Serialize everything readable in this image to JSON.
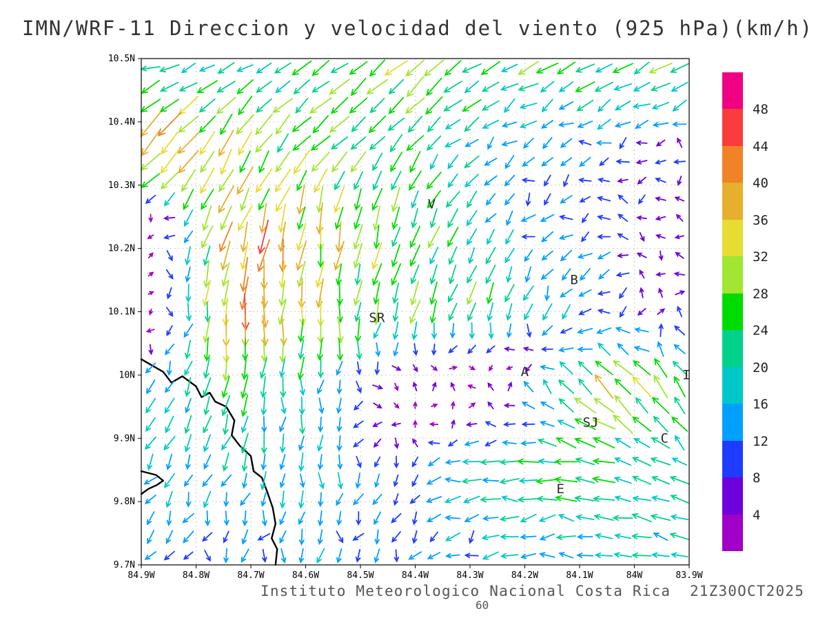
{
  "page": {
    "background": "#ffffff"
  },
  "chart_data": {
    "type": "vector_field_map",
    "title": "IMN/WRF-11 Direccion y velocidad del viento (925 hPa)(km/h)",
    "caption": "Instituto Meteorologico Nacional Costa Rica  21Z30OCT2025",
    "footnote": "60",
    "x_axis": {
      "range": [
        -84.9,
        -83.9
      ],
      "ticks": [
        "84.9W",
        "84.8W",
        "84.7W",
        "84.6W",
        "84.5W",
        "84.4W",
        "84.3W",
        "84.2W",
        "84.1W",
        "84W",
        "83.9W"
      ]
    },
    "y_axis": {
      "range": [
        9.7,
        10.5
      ],
      "ticks": [
        "10.5N",
        "10.4N",
        "10.3N",
        "10.2N",
        "10.1N",
        "10N",
        "9.9N",
        "9.8N",
        "9.7N"
      ]
    },
    "grid_step": 0.1,
    "colorbar": {
      "levels": [
        4,
        8,
        12,
        16,
        20,
        24,
        28,
        32,
        36,
        40,
        44,
        48
      ],
      "colors": [
        "#a000c8",
        "#6e00dc",
        "#1e3cff",
        "#00a0ff",
        "#00c8c8",
        "#00d28c",
        "#00dc00",
        "#a0e632",
        "#e6dc32",
        "#e6af2d",
        "#f08228",
        "#fa3c3c",
        "#f00082"
      ]
    },
    "stations": [
      {
        "label": "V",
        "lon": -84.37,
        "lat": 10.27
      },
      {
        "label": "B",
        "lon": -84.11,
        "lat": 10.15
      },
      {
        "label": "SR",
        "lon": -84.47,
        "lat": 10.09
      },
      {
        "label": "A",
        "lon": -84.2,
        "lat": 10.005
      },
      {
        "label": "I",
        "lon": -83.905,
        "lat": 10.0
      },
      {
        "label": "SJ",
        "lon": -84.08,
        "lat": 9.925
      },
      {
        "label": "C",
        "lon": -83.945,
        "lat": 9.9
      },
      {
        "label": "E",
        "lon": -84.135,
        "lat": 9.82
      }
    ],
    "coastlines": [
      [
        [
          -84.9,
          10.025
        ],
        [
          -84.86,
          10.005
        ],
        [
          -84.845,
          9.988
        ],
        [
          -84.825,
          9.998
        ],
        [
          -84.8,
          9.982
        ],
        [
          -84.79,
          9.965
        ],
        [
          -84.775,
          9.972
        ],
        [
          -84.765,
          9.958
        ],
        [
          -84.745,
          9.95
        ],
        [
          -84.73,
          9.928
        ],
        [
          -84.735,
          9.905
        ],
        [
          -84.72,
          9.888
        ],
        [
          -84.7,
          9.872
        ],
        [
          -84.695,
          9.848
        ],
        [
          -84.68,
          9.838
        ],
        [
          -84.67,
          9.815
        ],
        [
          -84.66,
          9.79
        ],
        [
          -84.655,
          9.765
        ],
        [
          -84.662,
          9.742
        ],
        [
          -84.652,
          9.725
        ],
        [
          -84.655,
          9.7
        ]
      ],
      [
        [
          -84.9,
          9.848
        ],
        [
          -84.873,
          9.842
        ],
        [
          -84.86,
          9.833
        ],
        [
          -84.872,
          9.826
        ],
        [
          -84.887,
          9.82
        ],
        [
          -84.9,
          9.812
        ]
      ]
    ],
    "wind_grid": {
      "comment": "direction_deg is direction the arrow points toward, 0=east 90=north; rows ordered by ascending latitude",
      "lons": [
        -84.9,
        -84.73,
        -84.56,
        -84.4,
        -84.23,
        -84.06,
        -83.9
      ],
      "lats": [
        9.7,
        9.85,
        9.98,
        10.11,
        10.24,
        10.37,
        10.5
      ],
      "direction_deg": [
        [
          235,
          250,
          265,
          230,
          190,
          180,
          170
        ],
        [
          230,
          255,
          268,
          200,
          185,
          170,
          150
        ],
        [
          225,
          262,
          270,
          30,
          80,
          135,
          125
        ],
        [
          80,
          265,
          268,
          255,
          250,
          230,
          110
        ],
        [
          100,
          250,
          262,
          250,
          230,
          200,
          140
        ],
        [
          225,
          235,
          225,
          230,
          215,
          190,
          160
        ],
        [
          185,
          205,
          215,
          220,
          205,
          210,
          215
        ]
      ],
      "speed_kmh": [
        [
          10,
          12,
          14,
          12,
          16,
          16,
          20
        ],
        [
          16,
          18,
          16,
          12,
          22,
          24,
          18
        ],
        [
          14,
          24,
          16,
          5,
          6,
          34,
          24
        ],
        [
          5,
          42,
          30,
          28,
          22,
          14,
          8
        ],
        [
          6,
          38,
          34,
          26,
          14,
          10,
          6
        ],
        [
          42,
          34,
          26,
          22,
          14,
          12,
          8
        ],
        [
          22,
          16,
          26,
          30,
          24,
          26,
          30
        ]
      ]
    },
    "arrows": {
      "cols": 29,
      "rows": 27
    }
  }
}
